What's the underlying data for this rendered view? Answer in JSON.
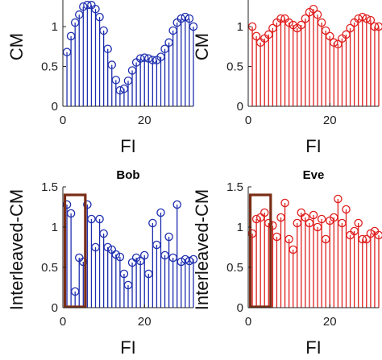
{
  "chart_data": [
    {
      "type": "stem",
      "panel": "top-left",
      "title": "",
      "xlabel": "FI",
      "ylabel": "CM",
      "xlim": [
        0,
        32
      ],
      "ylim": [
        0,
        1.25
      ],
      "xticks": [
        0,
        20
      ],
      "yticks": [
        0,
        0.5,
        1
      ],
      "color": "#1f2fb0",
      "x": [
        1,
        2,
        3,
        4,
        5,
        6,
        7,
        8,
        9,
        10,
        11,
        12,
        13,
        14,
        15,
        16,
        17,
        18,
        19,
        20,
        21,
        22,
        23,
        24,
        25,
        26,
        27,
        28,
        29,
        30,
        31,
        32
      ],
      "values": [
        0.68,
        0.88,
        1.05,
        1.15,
        1.25,
        1.27,
        1.27,
        1.22,
        1.12,
        0.95,
        0.72,
        0.52,
        0.33,
        0.2,
        0.22,
        0.32,
        0.45,
        0.55,
        0.6,
        0.61,
        0.6,
        0.58,
        0.58,
        0.62,
        0.72,
        0.8,
        0.95,
        1.05,
        1.1,
        1.12,
        1.1,
        1.0
      ]
    },
    {
      "type": "stem",
      "panel": "top-right",
      "title": "",
      "xlabel": "FI",
      "ylabel": "CM",
      "xlim": [
        0,
        32
      ],
      "ylim": [
        0,
        1.25
      ],
      "xticks": [
        0,
        20
      ],
      "yticks": [
        0,
        0.5,
        1
      ],
      "color": "#e02020",
      "x": [
        1,
        2,
        3,
        4,
        5,
        6,
        7,
        8,
        9,
        10,
        11,
        12,
        13,
        14,
        15,
        16,
        17,
        18,
        19,
        20,
        21,
        22,
        23,
        24,
        25,
        26,
        27,
        28,
        29,
        30,
        31,
        32
      ],
      "values": [
        1.0,
        0.88,
        0.8,
        0.85,
        0.9,
        0.98,
        1.05,
        1.1,
        1.1,
        1.05,
        1.02,
        0.98,
        1.02,
        1.1,
        1.18,
        1.22,
        1.15,
        1.05,
        0.95,
        0.88,
        0.8,
        0.78,
        0.85,
        0.9,
        0.98,
        1.05,
        1.1,
        1.12,
        1.1,
        1.08,
        1.0,
        1.0
      ]
    },
    {
      "type": "stem",
      "panel": "bottom-left",
      "title": "Bob",
      "xlabel": "FI",
      "ylabel": "Interleaved-CM",
      "xlim": [
        0,
        32
      ],
      "ylim": [
        0,
        1.5
      ],
      "xticks": [
        0,
        20
      ],
      "yticks": [
        0,
        0.5,
        1,
        1.5
      ],
      "color": "#1f2fb0",
      "highlight": {
        "x": [
          0.5,
          5.5
        ],
        "y": [
          0,
          1.4
        ],
        "color": "#7a2d16"
      },
      "x": [
        1,
        2,
        3,
        4,
        5,
        6,
        7,
        8,
        9,
        10,
        11,
        12,
        13,
        14,
        15,
        16,
        17,
        18,
        19,
        20,
        21,
        22,
        23,
        24,
        25,
        26,
        27,
        28,
        29,
        30,
        31,
        32
      ],
      "values": [
        1.28,
        1.17,
        0.2,
        0.62,
        0.57,
        1.28,
        1.1,
        0.75,
        1.1,
        0.92,
        0.75,
        0.72,
        0.66,
        0.63,
        0.42,
        0.28,
        0.56,
        0.62,
        0.58,
        0.65,
        0.42,
        1.05,
        0.78,
        1.18,
        0.65,
        0.88,
        0.62,
        1.28,
        0.57,
        0.6,
        0.58,
        0.6
      ]
    },
    {
      "type": "stem",
      "panel": "bottom-right",
      "title": "Eve",
      "xlabel": "FI",
      "ylabel": "Interleaved-CM",
      "xlim": [
        0,
        32
      ],
      "ylim": [
        0,
        1.5
      ],
      "xticks": [
        0,
        20
      ],
      "yticks": [
        0,
        0.5,
        1,
        1.5
      ],
      "color": "#e02020",
      "highlight": {
        "x": [
          0.5,
          5.5
        ],
        "y": [
          0,
          1.4
        ],
        "color": "#7a2d16"
      },
      "x": [
        1,
        2,
        3,
        4,
        5,
        6,
        7,
        8,
        9,
        10,
        11,
        12,
        13,
        14,
        15,
        16,
        17,
        18,
        19,
        20,
        21,
        22,
        23,
        24,
        25,
        26,
        27,
        28,
        29,
        30,
        31,
        32
      ],
      "values": [
        0.92,
        1.1,
        1.12,
        1.18,
        1.05,
        1.02,
        0.88,
        1.12,
        1.3,
        0.85,
        0.72,
        1.05,
        1.18,
        1.12,
        1.05,
        1.15,
        1.0,
        1.1,
        0.85,
        1.08,
        1.12,
        1.35,
        1.05,
        1.22,
        0.9,
        0.95,
        1.05,
        0.85,
        0.85,
        0.92,
        0.95,
        0.9
      ]
    }
  ]
}
